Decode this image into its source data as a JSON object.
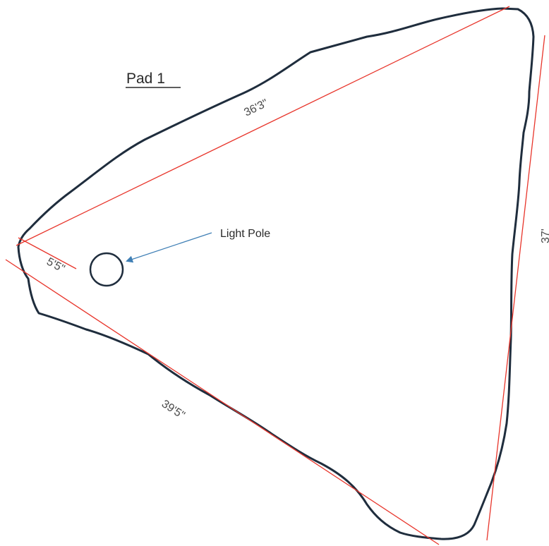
{
  "diagram": {
    "title": "Pad 1",
    "callout_label": "Light Pole",
    "dimensions": {
      "top_edge": "36'3\"",
      "right_edge": "37'",
      "bottom_edge": "39'5\"",
      "pole_offset": "5'5\""
    },
    "colors": {
      "outline": "#1f2d3d",
      "dimension_line": "#e8352b",
      "callout_arrow": "#3f7fb5",
      "text": "#2a2a2a"
    },
    "icons": {
      "light_pole": "circle-icon",
      "callout_arrow": "arrow-left-down-icon"
    }
  }
}
